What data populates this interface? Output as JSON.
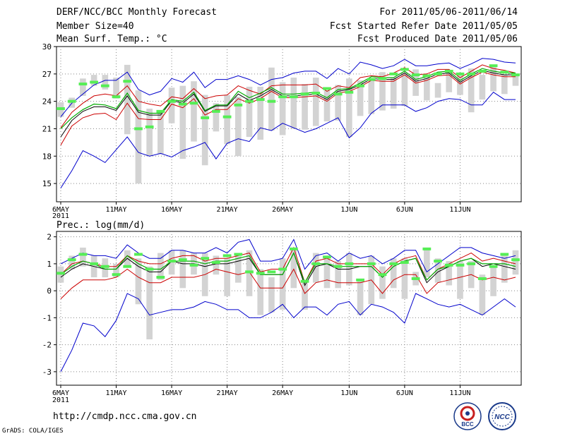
{
  "header": {
    "left_lines": [
      "DERF/NCC/BCC Monthly Forecast",
      "Member Size=40",
      "Mean Surf. Temp.: °C"
    ],
    "right_lines": [
      "For 2011/05/06-2011/06/14",
      "Fcst Started Refer Date 2011/05/05",
      "Fcst Produced Date 2011/05/06"
    ]
  },
  "footer": {
    "url": "http://cmdp.ncc.cma.gov.cn",
    "credit": "GrADS: COLA/IGES"
  },
  "logos": {
    "bcc": "BCC",
    "ncc": "NCC"
  },
  "colors": {
    "max_min": "#0000cc",
    "spread": "#cc0000",
    "mean": "#000000",
    "ctrl": "#00aa00",
    "obs": "#55ee55",
    "box": "#d3d3d3"
  },
  "chart_data": [
    {
      "type": "line",
      "title": "Mean Surf. Temp.: °C",
      "x_ticks": [
        {
          "day": 0,
          "label": "6MAY"
        },
        {
          "day": 5,
          "label": "11MAY"
        },
        {
          "day": 10,
          "label": "16MAY"
        },
        {
          "day": 15,
          "label": "21MAY"
        },
        {
          "day": 20,
          "label": "26MAY"
        },
        {
          "day": 26,
          "label": "1JUN"
        },
        {
          "day": 31,
          "label": "6JUN"
        },
        {
          "day": 36,
          "label": "11JUN"
        }
      ],
      "year_label": "2011",
      "ylim": [
        13,
        30
      ],
      "y_ticks": [
        15,
        18,
        21,
        24,
        27,
        30
      ],
      "series": [
        {
          "name": "max",
          "color_key": "max_min",
          "values": [
            22.3,
            23.8,
            24.8,
            25.8,
            26.3,
            26.3,
            27.2,
            25.3,
            24.7,
            25.1,
            26.5,
            26.1,
            27.2,
            25.5,
            26.4,
            26.4,
            26.8,
            26.4,
            25.8,
            26.4,
            26.6,
            27.1,
            27.3,
            27.3,
            26.5,
            27.6,
            27.0,
            28.3,
            28.0,
            27.6,
            27.9,
            28.6,
            27.9,
            27.9,
            28.1,
            28.2,
            27.6,
            28.1,
            28.7,
            28.6,
            28.3,
            28.2
          ]
        },
        {
          "name": "spread_upper",
          "color_key": "spread",
          "values": [
            21.1,
            22.8,
            23.8,
            24.6,
            24.8,
            24.6,
            25.7,
            24.0,
            23.7,
            23.5,
            24.5,
            24.3,
            25.4,
            24.3,
            24.6,
            24.7,
            25.7,
            25.2,
            24.8,
            25.7,
            25.8,
            25.8,
            25.8,
            25.9,
            25.1,
            25.7,
            25.5,
            26.6,
            26.8,
            26.7,
            27.1,
            27.7,
            26.9,
            27.0,
            27.5,
            27.5,
            26.6,
            27.3,
            28.0,
            27.6,
            27.4,
            27.1
          ]
        },
        {
          "name": "ensemble_mean",
          "color_key": "mean",
          "values": [
            20.1,
            21.9,
            22.9,
            23.4,
            23.4,
            23.0,
            24.6,
            22.8,
            22.5,
            22.5,
            24.1,
            23.8,
            24.8,
            22.9,
            23.5,
            23.5,
            24.8,
            24.1,
            24.6,
            25.3,
            24.6,
            24.6,
            24.7,
            24.8,
            24.2,
            25.1,
            25.3,
            25.8,
            26.5,
            26.4,
            26.4,
            27.1,
            26.2,
            26.5,
            27.0,
            27.1,
            26.1,
            26.8,
            27.4,
            27.1,
            26.9,
            26.9
          ]
        },
        {
          "name": "spread_lower",
          "color_key": "spread",
          "values": [
            19.2,
            21.3,
            22.2,
            22.6,
            22.7,
            22.0,
            23.8,
            22.1,
            22.0,
            22.0,
            23.7,
            23.3,
            24.3,
            22.5,
            23.1,
            23.1,
            24.3,
            23.8,
            24.3,
            25.1,
            24.4,
            24.4,
            24.5,
            24.6,
            24.0,
            24.9,
            25.1,
            25.6,
            26.3,
            26.2,
            26.2,
            26.9,
            26.0,
            26.3,
            26.8,
            26.9,
            25.9,
            26.6,
            27.2,
            26.9,
            26.7,
            26.7
          ]
        },
        {
          "name": "min",
          "color_key": "max_min",
          "values": [
            14.5,
            16.4,
            18.6,
            18.0,
            17.3,
            18.7,
            20.1,
            18.4,
            18.0,
            18.3,
            17.9,
            18.6,
            19.0,
            19.5,
            17.7,
            19.4,
            19.9,
            19.6,
            21.1,
            20.8,
            21.6,
            21.1,
            20.6,
            21.0,
            21.6,
            22.2,
            20.0,
            21.1,
            22.7,
            23.6,
            23.6,
            23.6,
            22.9,
            23.3,
            24.0,
            24.3,
            24.2,
            23.6,
            23.6,
            25.0,
            24.2,
            24.2
          ]
        },
        {
          "name": "control",
          "color_key": "ctrl",
          "values": [
            21.0,
            22.2,
            23.1,
            23.7,
            23.6,
            23.2,
            24.9,
            23.0,
            22.7,
            22.7,
            24.2,
            24.0,
            25.0,
            23.0,
            23.6,
            23.6,
            25.1,
            24.4,
            24.9,
            25.5,
            24.8,
            24.8,
            24.9,
            25.0,
            24.4,
            25.3,
            25.4,
            26.0,
            26.7,
            26.6,
            26.6,
            27.3,
            26.4,
            26.7,
            27.2,
            27.3,
            26.3,
            27.0,
            27.6,
            27.3,
            27.1,
            27.1
          ]
        }
      ],
      "boxes": [
        [
          22.3,
          23.9
        ],
        [
          23.3,
          24.4
        ],
        [
          24.6,
          26.5
        ],
        [
          25.7,
          26.9
        ],
        [
          25.3,
          26.9
        ],
        [
          24.3,
          26.6
        ],
        [
          20.4,
          28.0
        ],
        [
          15.0,
          25.2
        ],
        [
          18.0,
          23.2
        ],
        [
          18.2,
          23.0
        ],
        [
          21.6,
          25.5
        ],
        [
          17.7,
          25.7
        ],
        [
          19.6,
          26.2
        ],
        [
          17.0,
          24.7
        ],
        [
          20.7,
          23.8
        ],
        [
          19.3,
          24.7
        ],
        [
          18.0,
          24.5
        ],
        [
          20.1,
          25.6
        ],
        [
          19.8,
          25.6
        ],
        [
          20.8,
          27.7
        ],
        [
          20.3,
          26.1
        ],
        [
          21.0,
          26.6
        ],
        [
          20.9,
          25.9
        ],
        [
          21.3,
          26.6
        ],
        [
          21.8,
          25.2
        ],
        [
          21.9,
          25.8
        ],
        [
          20.1,
          26.5
        ],
        [
          22.4,
          26.3
        ],
        [
          22.6,
          26.3
        ],
        [
          23.0,
          27.2
        ],
        [
          23.2,
          26.6
        ],
        [
          23.5,
          27.1
        ],
        [
          24.6,
          27.5
        ],
        [
          24.1,
          26.7
        ],
        [
          24.4,
          26.0
        ],
        [
          25.0,
          27.2
        ],
        [
          24.7,
          26.9
        ],
        [
          22.8,
          27.6
        ],
        [
          24.2,
          26.9
        ],
        [
          25.1,
          27.8
        ],
        [
          24.8,
          26.9
        ],
        [
          25.7,
          26.8
        ]
      ],
      "obs": [
        23.2,
        24.0,
        25.9,
        26.1,
        25.7,
        24.5,
        26.2,
        21.0,
        21.2,
        22.9,
        24.0,
        23.7,
        23.8,
        22.2,
        22.9,
        22.3,
        23.6,
        24.0,
        24.2,
        24.0,
        24.5,
        24.5,
        24.8,
        24.9,
        25.4,
        24.8,
        25.0,
        25.7,
        26.4,
        26.5,
        27.0,
        27.5,
        26.9,
        26.8,
        27.0,
        27.3,
        27.0,
        27.0,
        27.3,
        27.9,
        27.2,
        26.9
      ]
    },
    {
      "type": "line",
      "title": "Prec.: log(mm/d)",
      "x_ticks": [
        {
          "day": 0,
          "label": "6MAY"
        },
        {
          "day": 5,
          "label": "11MAY"
        },
        {
          "day": 10,
          "label": "16MAY"
        },
        {
          "day": 15,
          "label": "21MAY"
        },
        {
          "day": 20,
          "label": "26MAY"
        },
        {
          "day": 26,
          "label": "1JUN"
        },
        {
          "day": 31,
          "label": "6JUN"
        },
        {
          "day": 36,
          "label": "11JUN"
        }
      ],
      "year_label": "2011",
      "ylim": [
        -3.5,
        2.2
      ],
      "y_ticks": [
        -3,
        -2,
        -1,
        0,
        1,
        2
      ],
      "series": [
        {
          "name": "max",
          "color_key": "max_min",
          "values": [
            1.0,
            1.2,
            1.4,
            1.3,
            1.3,
            1.2,
            1.7,
            1.4,
            1.2,
            1.2,
            1.5,
            1.5,
            1.4,
            1.4,
            1.6,
            1.4,
            1.8,
            1.9,
            1.1,
            1.1,
            1.2,
            1.9,
            0.8,
            1.3,
            1.4,
            1.1,
            1.4,
            1.2,
            1.3,
            1.0,
            1.2,
            1.5,
            1.5,
            0.7,
            1.0,
            1.3,
            1.6,
            1.6,
            1.4,
            1.3,
            1.2,
            1.3
          ]
        },
        {
          "name": "spread_upper",
          "color_key": "spread",
          "values": [
            0.6,
            1.0,
            1.1,
            1.0,
            0.9,
            0.9,
            1.3,
            1.1,
            1.0,
            1.0,
            1.2,
            1.3,
            1.3,
            1.1,
            1.2,
            1.2,
            1.3,
            1.4,
            0.7,
            0.8,
            0.8,
            1.6,
            0.3,
            1.1,
            1.2,
            1.0,
            1.0,
            1.0,
            1.0,
            0.6,
            1.0,
            1.2,
            1.3,
            0.4,
            0.8,
            1.0,
            1.2,
            1.4,
            1.1,
            1.2,
            1.1,
            1.0
          ]
        },
        {
          "name": "ensemble_mean",
          "color_key": "mean",
          "values": [
            0.5,
            0.8,
            1.0,
            0.9,
            0.8,
            0.8,
            1.2,
            0.9,
            0.7,
            0.7,
            1.1,
            1.0,
            1.0,
            0.9,
            1.0,
            1.0,
            1.1,
            1.2,
            0.6,
            0.6,
            0.6,
            1.4,
            0.2,
            0.9,
            1.0,
            0.8,
            0.8,
            0.9,
            0.9,
            0.5,
            0.9,
            1.1,
            1.2,
            0.3,
            0.7,
            0.9,
            1.1,
            1.2,
            0.9,
            1.0,
            0.9,
            0.8
          ]
        },
        {
          "name": "spread_lower",
          "color_key": "spread",
          "values": [
            -0.3,
            0.1,
            0.4,
            0.4,
            0.4,
            0.5,
            0.8,
            0.5,
            0.3,
            0.3,
            0.5,
            0.5,
            0.5,
            0.6,
            0.8,
            0.7,
            0.6,
            0.7,
            0.1,
            0.1,
            0.1,
            0.8,
            -0.1,
            0.3,
            0.4,
            0.3,
            0.3,
            0.3,
            0.4,
            -0.1,
            0.4,
            0.6,
            0.6,
            -0.1,
            0.3,
            0.4,
            0.5,
            0.6,
            0.4,
            0.5,
            0.4,
            0.5
          ]
        },
        {
          "name": "min",
          "color_key": "max_min",
          "values": [
            -3.0,
            -2.2,
            -1.2,
            -1.3,
            -1.7,
            -1.1,
            -0.1,
            -0.3,
            -0.9,
            -0.8,
            -0.7,
            -0.7,
            -0.6,
            -0.4,
            -0.5,
            -0.7,
            -0.7,
            -1.0,
            -1.0,
            -0.8,
            -0.5,
            -1.0,
            -0.6,
            -0.6,
            -0.9,
            -0.5,
            -0.4,
            -0.9,
            -0.5,
            -0.6,
            -0.8,
            -1.2,
            -0.1,
            -0.3,
            -0.5,
            -0.6,
            -0.5,
            -0.7,
            -0.9,
            -0.6,
            -0.3,
            -0.6
          ]
        },
        {
          "name": "control",
          "color_key": "ctrl",
          "values": [
            0.6,
            0.9,
            1.1,
            1.0,
            0.8,
            0.8,
            1.3,
            1.0,
            0.8,
            0.8,
            1.1,
            1.1,
            1.1,
            1.0,
            1.1,
            1.1,
            1.2,
            1.3,
            0.6,
            0.6,
            0.6,
            1.4,
            0.3,
            1.0,
            1.0,
            0.9,
            0.9,
            0.9,
            0.9,
            0.5,
            0.9,
            1.1,
            1.2,
            0.4,
            0.8,
            0.9,
            1.1,
            1.2,
            1.0,
            1.0,
            1.0,
            0.9
          ]
        }
      ],
      "boxes": [
        [
          0.3,
          0.9
        ],
        [
          0.8,
          1.3
        ],
        [
          0.9,
          1.6
        ],
        [
          0.5,
          1.3
        ],
        [
          0.5,
          1.2
        ],
        [
          0.5,
          1.0
        ],
        [
          0.9,
          1.5
        ],
        [
          -0.5,
          1.2
        ],
        [
          -1.8,
          0.9
        ],
        [
          0.4,
          1.4
        ],
        [
          0.6,
          1.5
        ],
        [
          0.1,
          1.5
        ],
        [
          0.6,
          1.4
        ],
        [
          -0.2,
          1.4
        ],
        [
          0.6,
          1.3
        ],
        [
          -0.2,
          1.2
        ],
        [
          0.3,
          1.4
        ],
        [
          -0.2,
          1.5
        ],
        [
          -0.9,
          0.8
        ],
        [
          -0.8,
          0.5
        ],
        [
          -0.7,
          1.2
        ],
        [
          0.1,
          1.6
        ],
        [
          -0.7,
          0.4
        ],
        [
          0.3,
          1.4
        ],
        [
          0.1,
          1.3
        ],
        [
          0.1,
          1.1
        ],
        [
          0.2,
          1.4
        ],
        [
          -0.9,
          0.4
        ],
        [
          -0.5,
          1.3
        ],
        [
          -0.3,
          0.9
        ],
        [
          0.1,
          1.2
        ],
        [
          -0.3,
          1.2
        ],
        [
          0.2,
          0.7
        ],
        [
          0.5,
          1.6
        ],
        [
          0.3,
          1.2
        ],
        [
          0.2,
          1.1
        ],
        [
          -0.3,
          1.1
        ],
        [
          0.1,
          1.1
        ],
        [
          -0.9,
          0.6
        ],
        [
          -0.2,
          0.9
        ],
        [
          0.3,
          1.4
        ],
        [
          0.6,
          1.5
        ]
      ],
      "obs": [
        0.65,
        1.15,
        1.35,
        1.0,
        0.9,
        0.6,
        0.9,
        1.35,
        0.8,
        0.5,
        1.1,
        1.15,
        0.95,
        1.2,
        1.05,
        1.3,
        1.35,
        0.7,
        0.65,
        0.7,
        0.8,
        1.55,
        0.35,
        1.0,
        1.25,
        0.9,
        1.0,
        0.4,
        1.0,
        0.6,
        1.0,
        1.05,
        0.45,
        1.55,
        1.1,
        0.95,
        0.95,
        1.0,
        0.45,
        0.9,
        1.35,
        1.15
      ]
    }
  ]
}
